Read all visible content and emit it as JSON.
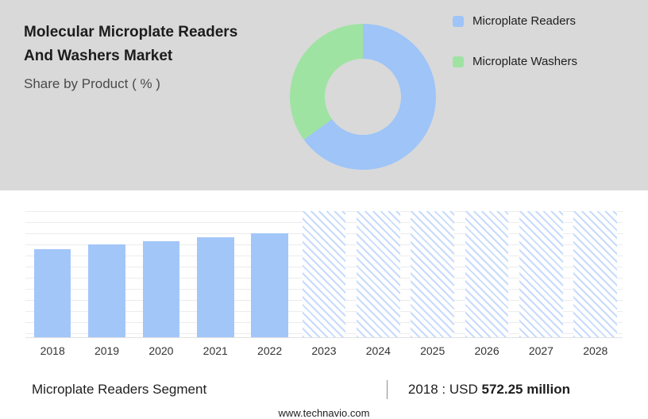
{
  "header": {
    "title_line1": "Molecular Microplate Readers",
    "title_line2": "And Washers Market",
    "subtitle": "Share by Product ( % )"
  },
  "legend": [
    {
      "label": "Microplate Readers",
      "color": "#9ec4f8"
    },
    {
      "label": "Microplate Washers",
      "color": "#9fe3a2"
    }
  ],
  "chart_data": [
    {
      "type": "pie",
      "title": "Share by Product ( % )",
      "labels": [
        "Microplate Readers",
        "Microplate Washers"
      ],
      "values": [
        65,
        35
      ],
      "colors": [
        "#9ec4f8",
        "#9fe3a2"
      ],
      "donut": true,
      "legend_position": "right"
    },
    {
      "type": "bar",
      "categories": [
        "2018",
        "2019",
        "2020",
        "2021",
        "2022",
        "2023",
        "2024",
        "2025",
        "2026",
        "2027",
        "2028"
      ],
      "values": [
        572.25,
        601,
        624,
        651,
        678,
        null,
        null,
        null,
        null,
        null,
        null
      ],
      "forecast_categories": [
        "2023",
        "2024",
        "2025",
        "2026",
        "2027",
        "2028"
      ],
      "unit": "USD million",
      "bar_color": "#a3c6f9",
      "ylim": [
        0,
        820
      ],
      "grid": "horizontal",
      "note": "2018 : USD 572.25 million"
    }
  ],
  "footer": {
    "segment_label": "Microplate Readers Segment",
    "separator": "|",
    "value_prefix": "2018 : USD",
    "value_bold": "572.25 million",
    "website": "www.technavio.com"
  }
}
